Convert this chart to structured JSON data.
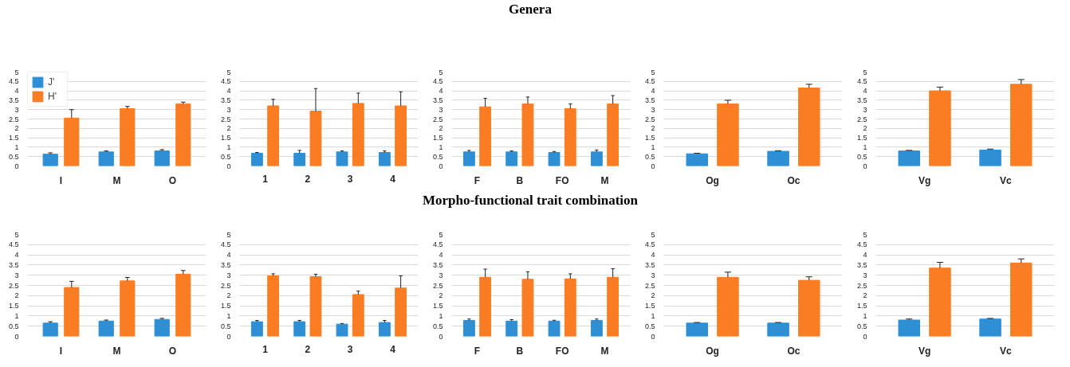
{
  "chart_data": [
    {
      "type": "bar",
      "categories": [
        "I",
        "M",
        "O"
      ],
      "ylim": [
        0,
        5
      ],
      "yticks": [
        0,
        0.5,
        1,
        1.5,
        2,
        2.5,
        3,
        3.5,
        4,
        4.5,
        5
      ],
      "grid": "y",
      "legend": "top left",
      "series": [
        {
          "name": "J'",
          "color": "#2e8fd4",
          "values": [
            0.63,
            0.75,
            0.8
          ],
          "errors": [
            [
              0.63,
              0.7
            ],
            [
              0.75,
              0.8
            ],
            [
              0.8,
              0.87
            ]
          ]
        },
        {
          "name": "H'",
          "color": "#fb7d23",
          "values": [
            2.55,
            3.05,
            3.3
          ],
          "errors": [
            [
              2.55,
              3.0
            ],
            [
              3.05,
              3.17
            ],
            [
              3.3,
              3.4
            ]
          ]
        }
      ]
    },
    {
      "type": "bar",
      "categories": [
        "1",
        "2",
        "3",
        "4"
      ],
      "ylim": [
        0,
        5
      ],
      "yticks": [
        0,
        0.5,
        1,
        1.5,
        2,
        2.5,
        3,
        3.5,
        4,
        4.5,
        5
      ],
      "grid": "y",
      "series": [
        {
          "color": "#2e8fd4",
          "values": [
            0.68,
            0.68,
            0.75,
            0.72
          ],
          "errors": [
            [
              0.68,
              0.72
            ],
            [
              0.68,
              0.83
            ],
            [
              0.75,
              0.8
            ],
            [
              0.72,
              0.8
            ]
          ]
        },
        {
          "color": "#fb7d23",
          "values": [
            3.2,
            2.92,
            3.33,
            3.2
          ],
          "errors": [
            [
              3.2,
              3.55
            ],
            [
              2.92,
              4.12
            ],
            [
              3.33,
              3.88
            ],
            [
              3.2,
              3.95
            ]
          ]
        }
      ]
    },
    {
      "type": "bar",
      "title": "Genera",
      "categories": [
        "F",
        "B",
        "FO",
        "M"
      ],
      "ylim": [
        0,
        5
      ],
      "yticks": [
        0,
        0.5,
        1,
        1.5,
        2,
        2.5,
        3,
        3.5,
        4,
        4.5,
        5
      ],
      "grid": "y",
      "series": [
        {
          "color": "#2e8fd4",
          "values": [
            0.75,
            0.75,
            0.72,
            0.75
          ],
          "errors": [
            [
              0.75,
              0.83
            ],
            [
              0.75,
              0.8
            ],
            [
              0.72,
              0.77
            ],
            [
              0.75,
              0.85
            ]
          ]
        },
        {
          "color": "#fb7d23",
          "values": [
            3.15,
            3.3,
            3.05,
            3.3
          ],
          "errors": [
            [
              3.15,
              3.6
            ],
            [
              3.3,
              3.67
            ],
            [
              3.05,
              3.3
            ],
            [
              3.3,
              3.75
            ]
          ]
        }
      ]
    },
    {
      "type": "bar",
      "categories": [
        "Og",
        "Oc"
      ],
      "ylim": [
        0,
        5
      ],
      "yticks": [
        0,
        0.5,
        1,
        1.5,
        2,
        2.5,
        3,
        3.5,
        4,
        4.5,
        5
      ],
      "grid": "y",
      "series": [
        {
          "color": "#2e8fd4",
          "values": [
            0.65,
            0.78
          ],
          "errors": [
            [
              0.65,
              0.68
            ],
            [
              0.78,
              0.81
            ]
          ]
        },
        {
          "color": "#fb7d23",
          "values": [
            3.3,
            4.15
          ],
          "errors": [
            [
              3.3,
              3.5
            ],
            [
              4.15,
              4.35
            ]
          ]
        }
      ]
    },
    {
      "type": "bar",
      "categories": [
        "Vg",
        "Vc"
      ],
      "ylim": [
        0,
        5
      ],
      "yticks": [
        0,
        0.5,
        1,
        1.5,
        2,
        2.5,
        3,
        3.5,
        4,
        4.5,
        5
      ],
      "grid": "y",
      "series": [
        {
          "color": "#2e8fd4",
          "values": [
            0.8,
            0.85
          ],
          "errors": [
            [
              0.8,
              0.83
            ],
            [
              0.85,
              0.9
            ]
          ]
        },
        {
          "color": "#fb7d23",
          "values": [
            4.0,
            4.35
          ],
          "errors": [
            [
              4.0,
              4.2
            ],
            [
              4.35,
              4.6
            ]
          ]
        }
      ]
    },
    {
      "type": "bar",
      "categories": [
        "I",
        "M",
        "O"
      ],
      "ylim": [
        0,
        5
      ],
      "yticks": [
        0,
        0.5,
        1,
        1.5,
        2,
        2.5,
        3,
        3.5,
        4,
        4.5,
        5
      ],
      "grid": "y",
      "series": [
        {
          "color": "#2e8fd4",
          "values": [
            0.65,
            0.75,
            0.83
          ],
          "errors": [
            [
              0.65,
              0.72
            ],
            [
              0.75,
              0.8
            ],
            [
              0.83,
              0.88
            ]
          ]
        },
        {
          "color": "#fb7d23",
          "values": [
            2.4,
            2.72,
            3.05
          ],
          "errors": [
            [
              2.4,
              2.7
            ],
            [
              2.72,
              2.89
            ],
            [
              3.05,
              3.23
            ]
          ]
        }
      ]
    },
    {
      "type": "bar",
      "categories": [
        "1",
        "2",
        "3",
        "4"
      ],
      "ylim": [
        0,
        5
      ],
      "yticks": [
        0,
        0.5,
        1,
        1.5,
        2,
        2.5,
        3,
        3.5,
        4,
        4.5,
        5
      ],
      "grid": "y",
      "series": [
        {
          "color": "#2e8fd4",
          "values": [
            0.72,
            0.72,
            0.6,
            0.68
          ],
          "errors": [
            [
              0.72,
              0.78
            ],
            [
              0.72,
              0.78
            ],
            [
              0.6,
              0.63
            ],
            [
              0.68,
              0.78
            ]
          ]
        },
        {
          "color": "#fb7d23",
          "values": [
            2.97,
            2.93,
            2.05,
            2.37
          ],
          "errors": [
            [
              2.97,
              3.07
            ],
            [
              2.93,
              3.05
            ],
            [
              2.05,
              2.22
            ],
            [
              2.37,
              2.97
            ]
          ]
        }
      ]
    },
    {
      "type": "bar",
      "title": "Morpho-functional trait combination",
      "categories": [
        "F",
        "B",
        "FO",
        "M"
      ],
      "ylim": [
        0,
        5
      ],
      "yticks": [
        0,
        0.5,
        1,
        1.5,
        2,
        2.5,
        3,
        3.5,
        4,
        4.5,
        5
      ],
      "grid": "y",
      "series": [
        {
          "color": "#2e8fd4",
          "values": [
            0.78,
            0.75,
            0.75,
            0.78
          ],
          "errors": [
            [
              0.78,
              0.85
            ],
            [
              0.75,
              0.82
            ],
            [
              0.75,
              0.79
            ],
            [
              0.78,
              0.85
            ]
          ]
        },
        {
          "color": "#fb7d23",
          "values": [
            2.9,
            2.8,
            2.82,
            2.9
          ],
          "errors": [
            [
              2.9,
              3.3
            ],
            [
              2.8,
              3.17
            ],
            [
              2.82,
              3.07
            ],
            [
              2.9,
              3.32
            ]
          ]
        }
      ]
    },
    {
      "type": "bar",
      "categories": [
        "Og",
        "Oc"
      ],
      "ylim": [
        0,
        5
      ],
      "yticks": [
        0,
        0.5,
        1,
        1.5,
        2,
        2.5,
        3,
        3.5,
        4,
        4.5,
        5
      ],
      "grid": "y",
      "series": [
        {
          "color": "#2e8fd4",
          "values": [
            0.65,
            0.65
          ],
          "errors": [
            [
              0.65,
              0.68
            ],
            [
              0.65,
              0.68
            ]
          ]
        },
        {
          "color": "#fb7d23",
          "values": [
            2.9,
            2.75
          ],
          "errors": [
            [
              2.9,
              3.15
            ],
            [
              2.75,
              2.92
            ]
          ]
        }
      ]
    },
    {
      "type": "bar",
      "categories": [
        "Vg",
        "Vc"
      ],
      "ylim": [
        0,
        5
      ],
      "yticks": [
        0,
        0.5,
        1,
        1.5,
        2,
        2.5,
        3,
        3.5,
        4,
        4.5,
        5
      ],
      "grid": "y",
      "series": [
        {
          "color": "#2e8fd4",
          "values": [
            0.8,
            0.85
          ],
          "errors": [
            [
              0.8,
              0.85
            ],
            [
              0.85,
              0.88
            ]
          ]
        },
        {
          "color": "#fb7d23",
          "values": [
            3.35,
            3.6
          ],
          "errors": [
            [
              3.35,
              3.63
            ],
            [
              3.6,
              3.8
            ]
          ]
        }
      ]
    }
  ]
}
